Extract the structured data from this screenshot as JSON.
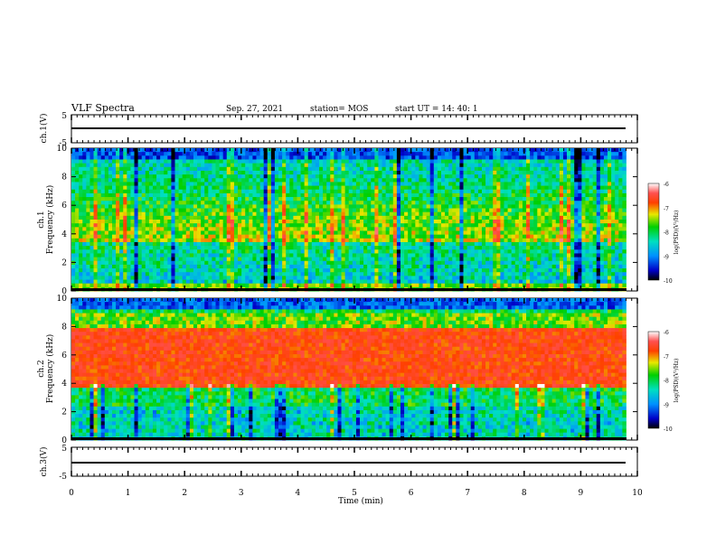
{
  "header": {
    "title": "VLF Spectra",
    "date": "Sep. 27, 2021",
    "station": "station= MOS",
    "start": "start  UT =   14: 40: 1"
  },
  "chart_data": [
    {
      "type": "line",
      "title": "",
      "ylabel": "ch.1(V)",
      "xlim": [
        0,
        10
      ],
      "ylim": [
        -5,
        5
      ],
      "yticks": [
        "5",
        "-5"
      ],
      "series": [
        {
          "x": [
            0,
            9.8
          ],
          "values": [
            0,
            0
          ]
        }
      ]
    },
    {
      "type": "heatmap",
      "ylabel_top": "ch.1",
      "ylabel": "Frequency (kHz)",
      "xlim": [
        0,
        10
      ],
      "ylim": [
        0,
        10
      ],
      "yticks": [
        "0",
        "2",
        "4",
        "6",
        "8",
        "10"
      ],
      "colorbar": {
        "label": "log(PSD)(V²/Hz)",
        "ticks": [
          "-6",
          "-7",
          "-8",
          "-9",
          "-10"
        ],
        "range": [
          -10,
          -6
        ]
      },
      "data_extent_x": [
        0,
        9.8
      ],
      "description_level": "broadband noise mostly -8 to -7 with vertical impulsive spikes"
    },
    {
      "type": "heatmap",
      "ylabel_top": "ch.2",
      "ylabel": "Frequency (kHz)",
      "xlim": [
        0,
        10
      ],
      "ylim": [
        0,
        10
      ],
      "yticks": [
        "0",
        "2",
        "4",
        "6",
        "8",
        "10"
      ],
      "colorbar": {
        "label": "log(PSD)(V²/Hz)",
        "ticks": [
          "-6",
          "-7",
          "-8",
          "-9",
          "-10"
        ],
        "range": [
          -10,
          -6
        ]
      },
      "data_extent_x": [
        0,
        9.8
      ],
      "description_level": "strong band 4-8 kHz near -7 to -6"
    },
    {
      "type": "line",
      "ylabel": "ch.3(V)",
      "xlim": [
        0,
        10
      ],
      "ylim": [
        -5,
        5
      ],
      "yticks": [
        "5",
        "-5"
      ],
      "xlabel": "Time (min)",
      "xticks": [
        "0",
        "1",
        "2",
        "3",
        "4",
        "5",
        "6",
        "7",
        "8",
        "9",
        "10"
      ],
      "series": [
        {
          "x": [
            0,
            9.8
          ],
          "values": [
            0,
            0
          ]
        }
      ]
    }
  ]
}
